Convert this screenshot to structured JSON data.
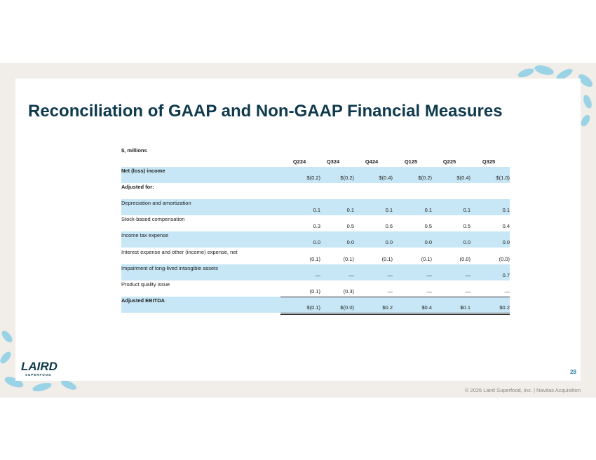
{
  "header": {
    "title": "Reconciliation of GAAP and Non-GAAP Financial Measures"
  },
  "table": {
    "unit": "$, millions",
    "columns": [
      "Q224",
      "Q324",
      "Q424",
      "Q125",
      "Q225",
      "Q325"
    ],
    "rows": [
      {
        "label": "Net (loss) income",
        "values": [
          "$(0.2)",
          "$(0.2)",
          "$(0.4)",
          "$(0.2)",
          "$(0.4)",
          "$(1.0)"
        ]
      },
      {
        "label": "Adjusted for:",
        "values": []
      },
      {
        "label": "Depreciation and amortization",
        "values": [
          "0.1",
          "0.1",
          "0.1",
          "0.1",
          "0.1",
          "0.1"
        ]
      },
      {
        "label": "Stock-based compensation",
        "values": [
          "0.3",
          "0.5",
          "0.6",
          "0.5",
          "0.5",
          "0.4"
        ]
      },
      {
        "label": "Income tax expense",
        "values": [
          "0.0",
          "0.0",
          "0.0",
          "0.0",
          "0.0",
          "0.0"
        ]
      },
      {
        "label": "Interest expense and other (income) expense, net",
        "values": [
          "(0.1)",
          "(0.1)",
          "(0.1)",
          "(0.1)",
          "(0.0)",
          "(0.0)"
        ]
      },
      {
        "label": "Impairment of long-lived intangible assets",
        "values": [
          "—",
          "—",
          "—",
          "—",
          "—",
          "0.7"
        ]
      },
      {
        "label": "Product quality issue",
        "values": [
          "(0.1)",
          "(0.3)",
          "—",
          "—",
          "—",
          "—"
        ]
      },
      {
        "label": "Adjusted EBITDA",
        "values": [
          "$(0.1)",
          "$(0.0)",
          "$0.2",
          "$0.4",
          "$0.1",
          "$0.2"
        ]
      }
    ]
  },
  "footer": {
    "page": "28",
    "copyright": "© 2026 Laird Superfood, Inc. | Navitas Acquisition"
  },
  "logo": {
    "name": "LAIRD",
    "tagline": "SUPERFOOD"
  }
}
